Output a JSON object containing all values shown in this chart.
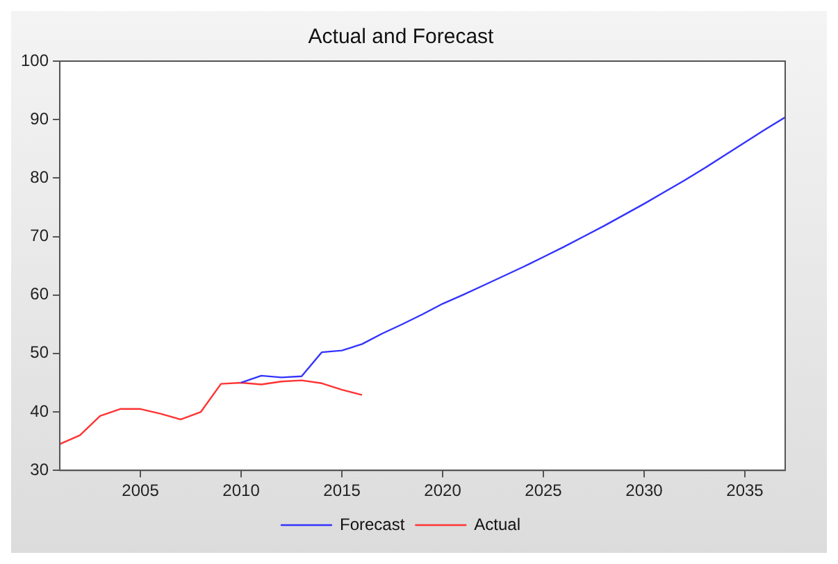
{
  "chart_data": {
    "type": "line",
    "title": "Actual and Forecast",
    "series": [
      {
        "name": "Forecast",
        "color": "#3333ff",
        "x": [
          2010,
          2011,
          2012,
          2013,
          2014,
          2015,
          2016,
          2017,
          2018,
          2019,
          2020,
          2021,
          2022,
          2023,
          2024,
          2025,
          2026,
          2027,
          2028,
          2029,
          2030,
          2031,
          2032,
          2033,
          2034,
          2035,
          2036,
          2037
        ],
        "values": [
          45,
          46.2,
          45.9,
          46.1,
          50.2,
          50.5,
          51.6,
          53.4,
          55,
          56.7,
          58.5,
          60,
          61.6,
          63.2,
          64.8,
          66.5,
          68.2,
          70,
          71.8,
          73.7,
          75.6,
          77.6,
          79.6,
          81.7,
          83.9,
          86.1,
          88.3,
          90.4
        ]
      },
      {
        "name": "Actual",
        "color": "#ff3333",
        "x": [
          2001,
          2002,
          2003,
          2004,
          2005,
          2006,
          2007,
          2008,
          2009,
          2010,
          2011,
          2012,
          2013,
          2014,
          2015,
          2016
        ],
        "values": [
          34.5,
          36,
          39.3,
          40.5,
          40.5,
          39.7,
          38.7,
          40,
          44.8,
          45,
          44.7,
          45.2,
          45.4,
          44.9,
          43.8,
          42.9
        ]
      }
    ],
    "xlim": [
      2001,
      2037
    ],
    "xticks": [
      2005,
      2010,
      2015,
      2020,
      2025,
      2030,
      2035
    ],
    "ylim": [
      30,
      100
    ],
    "yticks": [
      30,
      40,
      50,
      60,
      70,
      80,
      90,
      100
    ],
    "grid": false,
    "legend": "bottom",
    "marker": "none",
    "line_style": "solid"
  }
}
